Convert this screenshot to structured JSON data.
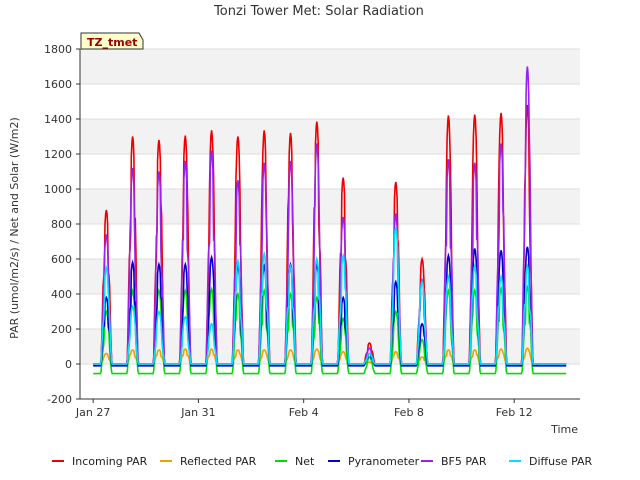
{
  "chart_data": {
    "type": "line",
    "title": "Tonzi Tower Met: Solar Radiation",
    "xlabel": "Time",
    "ylabel": "PAR (umol/m2/s) / Net and Solar (W/m2)",
    "ylim": [
      -200,
      1800
    ],
    "xlim": [
      -0.5,
      18.5
    ],
    "yticks": [
      -200,
      0,
      200,
      400,
      600,
      800,
      1000,
      1200,
      1400,
      1600,
      1800
    ],
    "xticks": [
      {
        "day": 0,
        "label": "Jan 27"
      },
      {
        "day": 4,
        "label": "Jan 31"
      },
      {
        "day": 8,
        "label": "Feb 4"
      },
      {
        "day": 12,
        "label": "Feb 8"
      },
      {
        "day": 16,
        "label": "Feb 12"
      }
    ],
    "grid": "horizontal bands",
    "legend_position": "bottom",
    "badge": "TZ_tmet",
    "days": [
      "Jan 27",
      "Jan 28",
      "Jan 29",
      "Jan 30",
      "Jan 31",
      "Feb 1",
      "Feb 2",
      "Feb 3",
      "Feb 4",
      "Feb 5",
      "Feb 6",
      "Feb 7",
      "Feb 8",
      "Feb 9",
      "Feb 10",
      "Feb 11",
      "Feb 12",
      "Feb 13"
    ],
    "series": [
      {
        "name": "Incoming PAR",
        "color": "#ee0000",
        "night": 0,
        "peaks": [
          880,
          1300,
          1280,
          1305,
          1335,
          1300,
          1335,
          1320,
          1385,
          1065,
          120,
          1040,
          600,
          1420,
          1425,
          1435,
          1480,
          0
        ]
      },
      {
        "name": "Reflected PAR",
        "color": "#f0a000",
        "night": 0,
        "peaks": [
          60,
          80,
          80,
          85,
          85,
          80,
          80,
          80,
          85,
          70,
          10,
          70,
          40,
          80,
          80,
          85,
          90,
          0
        ]
      },
      {
        "name": "Net",
        "color": "#00dd00",
        "night": -55,
        "peaks": [
          300,
          420,
          420,
          420,
          430,
          400,
          420,
          400,
          380,
          260,
          40,
          300,
          140,
          420,
          420,
          430,
          440,
          0
        ]
      },
      {
        "name": "Pyranometer",
        "color": "#0000cc",
        "night": -10,
        "peaks": [
          380,
          580,
          570,
          570,
          610,
          560,
          560,
          570,
          570,
          380,
          60,
          470,
          230,
          620,
          660,
          650,
          670,
          0
        ]
      },
      {
        "name": "BF5 PAR",
        "color": "#9922ee",
        "night": 0,
        "peaks": [
          740,
          1120,
          1100,
          1160,
          1220,
          1050,
          1150,
          1160,
          1260,
          840,
          90,
          860,
          480,
          1170,
          1150,
          1260,
          1700,
          0
        ]
      },
      {
        "name": "Diffuse PAR",
        "color": "#00e0ff",
        "night": 0,
        "peaks": [
          550,
          330,
          300,
          270,
          230,
          590,
          630,
          560,
          600,
          620,
          60,
          780,
          470,
          500,
          560,
          500,
          560,
          0
        ]
      }
    ]
  }
}
